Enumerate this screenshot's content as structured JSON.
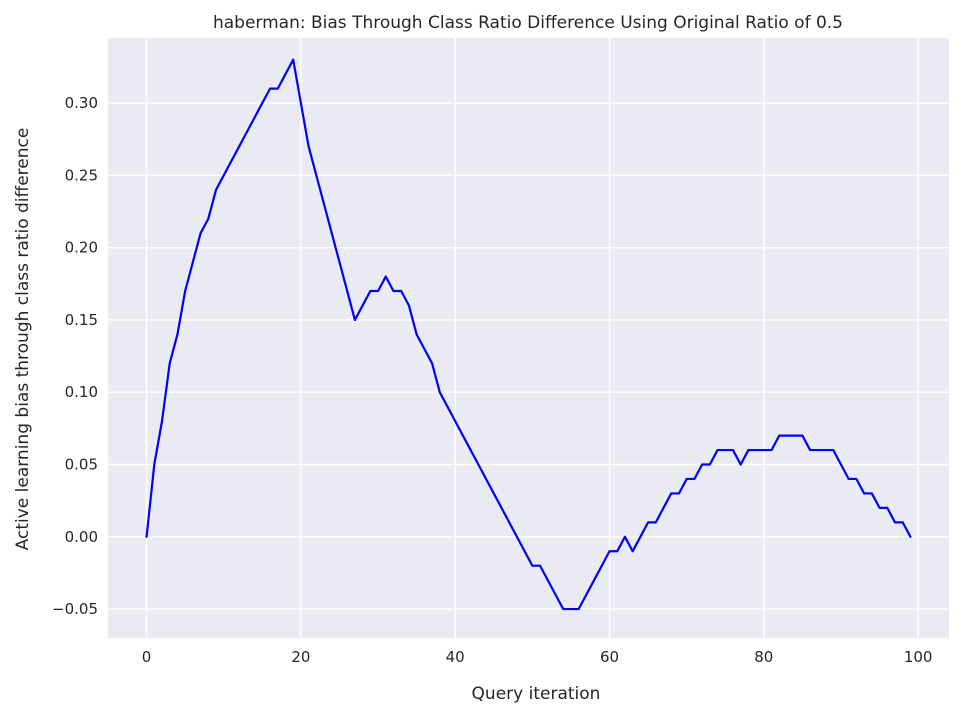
{
  "chart_data": {
    "type": "line",
    "title": "haberman: Bias Through Class Ratio Difference Using Original Ratio of 0.5",
    "xlabel": "Query iteration",
    "ylabel": "Active learning bias through class ratio difference",
    "xlim": [
      -5,
      104
    ],
    "ylim": [
      -0.07,
      0.345
    ],
    "x_ticks": [
      0,
      20,
      40,
      60,
      80,
      100
    ],
    "x_tick_labels": [
      "0",
      "20",
      "40",
      "60",
      "80",
      "100"
    ],
    "y_ticks": [
      -0.05,
      0.0,
      0.05,
      0.1,
      0.15,
      0.2,
      0.25,
      0.3
    ],
    "y_tick_labels": [
      "−0.05",
      "0.00",
      "0.05",
      "0.10",
      "0.15",
      "0.20",
      "0.25",
      "0.30"
    ],
    "grid": true,
    "background": "#eaeaf2",
    "grid_color": "#ffffff",
    "series": [
      {
        "color": "#0000ff",
        "x": [
          0,
          1,
          2,
          3,
          4,
          5,
          6,
          7,
          8,
          9,
          10,
          11,
          12,
          13,
          14,
          15,
          16,
          17,
          18,
          19,
          20,
          21,
          22,
          23,
          24,
          25,
          26,
          27,
          28,
          29,
          30,
          31,
          32,
          33,
          34,
          35,
          36,
          37,
          38,
          39,
          40,
          41,
          42,
          43,
          44,
          45,
          46,
          47,
          48,
          49,
          50,
          51,
          52,
          53,
          54,
          55,
          56,
          57,
          58,
          59,
          60,
          61,
          62,
          63,
          64,
          65,
          66,
          67,
          68,
          69,
          70,
          71,
          72,
          73,
          74,
          75,
          76,
          77,
          78,
          79,
          80,
          81,
          82,
          83,
          84,
          85,
          86,
          87,
          88,
          89,
          90,
          91,
          92,
          93,
          94,
          95,
          96,
          97,
          98,
          99
        ],
        "values": [
          0.0,
          0.05,
          0.08,
          0.12,
          0.14,
          0.17,
          0.19,
          0.21,
          0.22,
          0.24,
          0.25,
          0.26,
          0.27,
          0.28,
          0.29,
          0.3,
          0.31,
          0.31,
          0.32,
          0.33,
          0.3,
          0.27,
          0.25,
          0.23,
          0.21,
          0.19,
          0.17,
          0.15,
          0.16,
          0.17,
          0.17,
          0.18,
          0.17,
          0.17,
          0.16,
          0.14,
          0.13,
          0.12,
          0.1,
          0.09,
          0.08,
          0.07,
          0.06,
          0.05,
          0.04,
          0.03,
          0.02,
          0.01,
          0.0,
          -0.01,
          -0.02,
          -0.02,
          -0.03,
          -0.04,
          -0.05,
          -0.05,
          -0.05,
          -0.04,
          -0.03,
          -0.02,
          -0.01,
          -0.01,
          0.0,
          -0.01,
          0.0,
          0.01,
          0.01,
          0.02,
          0.03,
          0.03,
          0.04,
          0.04,
          0.05,
          0.05,
          0.06,
          0.06,
          0.06,
          0.05,
          0.06,
          0.06,
          0.06,
          0.06,
          0.07,
          0.07,
          0.07,
          0.07,
          0.06,
          0.06,
          0.06,
          0.06,
          0.05,
          0.04,
          0.04,
          0.03,
          0.03,
          0.02,
          0.02,
          0.01,
          0.01,
          0.0
        ]
      }
    ]
  }
}
